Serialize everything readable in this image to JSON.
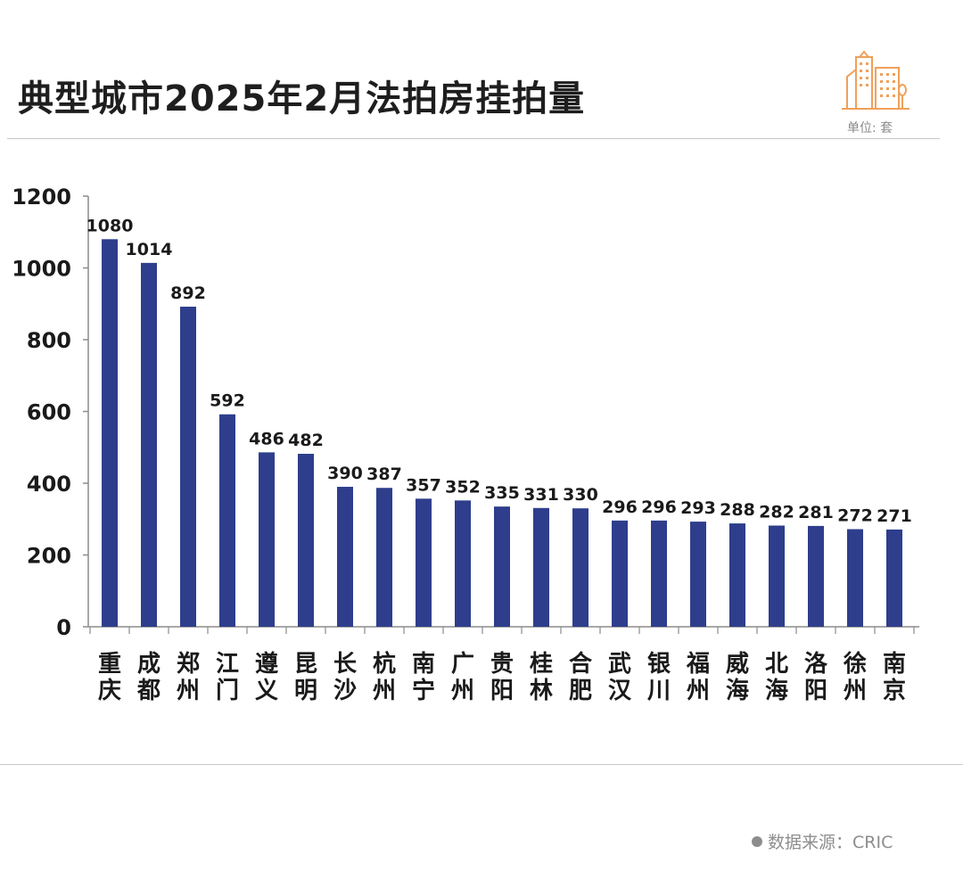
{
  "title": "典型城市2025年2月法拍房挂拍量",
  "unit": "单位: 套",
  "source": "数据来源：CRIC",
  "colors": {
    "bar": "#2e3e8c",
    "logo": "#f0a05a",
    "axis": "#8c8c8c"
  },
  "chart_data": {
    "type": "bar",
    "categories": [
      "重庆",
      "成都",
      "郑州",
      "江门",
      "遵义",
      "昆明",
      "长沙",
      "杭州",
      "南宁",
      "广州",
      "贵阳",
      "桂林",
      "合肥",
      "武汉",
      "银川",
      "福州",
      "威海",
      "北海",
      "洛阳",
      "徐州",
      "南京"
    ],
    "values": [
      1080,
      1014,
      892,
      592,
      486,
      482,
      390,
      387,
      357,
      352,
      335,
      331,
      330,
      296,
      296,
      293,
      288,
      282,
      281,
      272,
      271
    ],
    "yticks": [
      0,
      200,
      400,
      600,
      800,
      1000,
      1200
    ],
    "ylim": [
      0,
      1200
    ],
    "title": "典型城市2025年2月法拍房挂拍量",
    "xlabel": "",
    "ylabel": "",
    "grid": false,
    "legend": "none"
  }
}
